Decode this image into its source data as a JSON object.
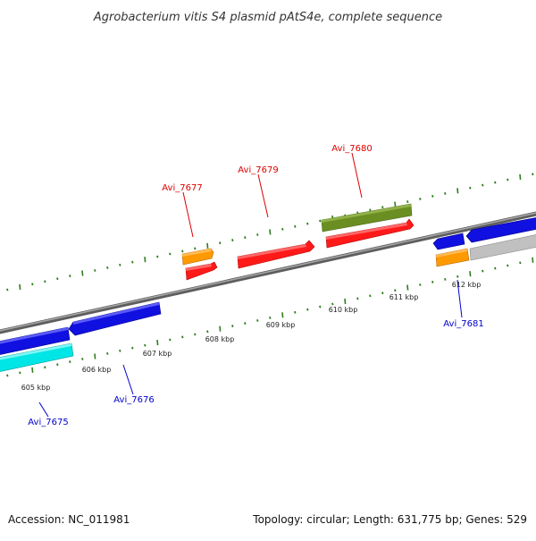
{
  "title": "Agrobacterium vitis S4 plasmid pAtS4e, complete sequence",
  "footer": {
    "accession": "Accession: NC_011981",
    "summary": "Topology: circular; Length: 631,775 bp; Genes: 529"
  },
  "scale": {
    "unit_labels": [
      "605 kbp",
      "606 kbp",
      "607 kbp",
      "608 kbp",
      "609 kbp",
      "610 kbp",
      "611 kbp",
      "612 kbp"
    ]
  },
  "gene_labels": {
    "avi_7677": "Avi_7677",
    "avi_7679": "Avi_7679",
    "avi_7680": "Avi_7680",
    "avi_7675": "Avi_7675",
    "avi_7676": "Avi_7676",
    "avi_7681": "Avi_7681"
  },
  "colors": {
    "backbone": "#808080",
    "tick": "#2e7d1e",
    "forward_label": "#dd0000",
    "reverse_label": "#0000cc",
    "red_gene": "#ff1a1a",
    "orange_gene": "#ff9900",
    "olive_gene": "#6b8e23",
    "blue_gene": "#1010e0",
    "cyan_gene": "#00e5e5",
    "grey_gene": "#c0c0c0"
  }
}
